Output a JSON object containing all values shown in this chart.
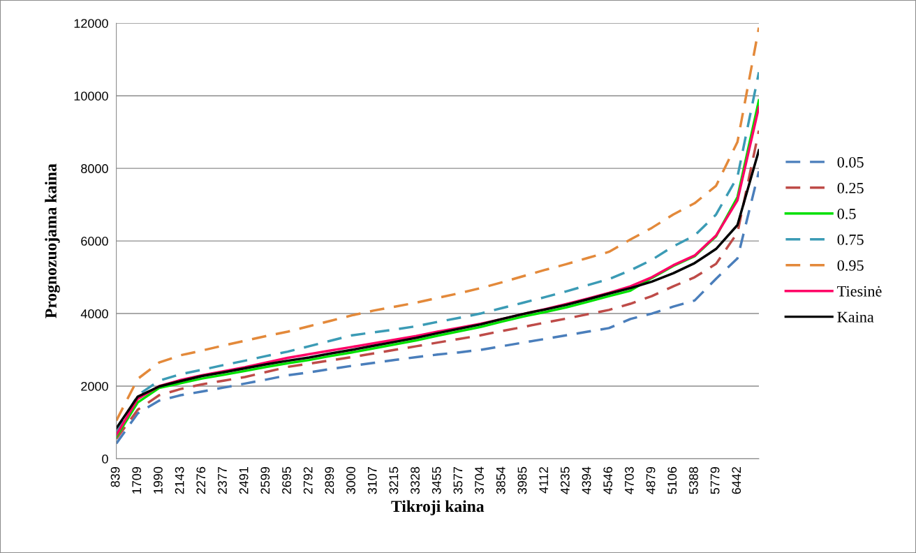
{
  "chart_data": {
    "type": "line",
    "xlabel": "Tikroji kaina",
    "ylabel": "Prognozuojama kaina",
    "categories": [
      "839",
      "1709",
      "1990",
      "2143",
      "2276",
      "2377",
      "2491",
      "2599",
      "2695",
      "2792",
      "2899",
      "3000",
      "3107",
      "3215",
      "3328",
      "3455",
      "3577",
      "3704",
      "3854",
      "3985",
      "4112",
      "4235",
      "4394",
      "4546",
      "4703",
      "4879",
      "5106",
      "5388",
      "5779",
      "6442",
      null
    ],
    "ylim": [
      0,
      12000
    ],
    "yticks": [
      0,
      2000,
      4000,
      6000,
      8000,
      10000,
      12000
    ],
    "grid": "y",
    "legend": "right",
    "marker": "none",
    "series": [
      {
        "name": "0.05",
        "color": "#4a7ebb",
        "line_style": "dashed",
        "values": [
          420,
          1250,
          1600,
          1750,
          1850,
          1960,
          2070,
          2180,
          2300,
          2380,
          2470,
          2560,
          2640,
          2720,
          2800,
          2870,
          2930,
          3000,
          3100,
          3200,
          3300,
          3400,
          3500,
          3600,
          3850,
          4000,
          4190,
          4360,
          4960,
          5520,
          7920
        ]
      },
      {
        "name": "0.25",
        "color": "#be4b48",
        "line_style": "dashed",
        "values": [
          550,
          1350,
          1750,
          1920,
          2050,
          2150,
          2250,
          2390,
          2530,
          2620,
          2710,
          2800,
          2900,
          3000,
          3100,
          3200,
          3300,
          3400,
          3520,
          3630,
          3750,
          3860,
          3980,
          4100,
          4270,
          4480,
          4750,
          5000,
          5370,
          6230,
          9040
        ]
      },
      {
        "name": "0.5",
        "color": "#00e000",
        "line_style": "solid",
        "values": [
          600,
          1550,
          1950,
          2080,
          2210,
          2310,
          2420,
          2530,
          2630,
          2720,
          2830,
          2930,
          3040,
          3150,
          3260,
          3390,
          3510,
          3630,
          3780,
          3920,
          4040,
          4170,
          4320,
          4480,
          4630,
          4980,
          5310,
          5580,
          6130,
          7210,
          9880
        ]
      },
      {
        "name": "0.75",
        "color": "#3b9bb5",
        "line_style": "dashed",
        "values": [
          700,
          1750,
          2150,
          2330,
          2450,
          2580,
          2700,
          2830,
          2950,
          3100,
          3250,
          3400,
          3480,
          3560,
          3650,
          3770,
          3880,
          4000,
          4150,
          4300,
          4450,
          4610,
          4780,
          4950,
          5190,
          5480,
          5850,
          6150,
          6730,
          7770,
          10650
        ]
      },
      {
        "name": "0.95",
        "color": "#e3893a",
        "line_style": "dashed",
        "values": [
          1050,
          2200,
          2650,
          2850,
          2980,
          3120,
          3250,
          3380,
          3500,
          3650,
          3800,
          3950,
          4080,
          4190,
          4300,
          4430,
          4560,
          4700,
          4860,
          5030,
          5200,
          5360,
          5530,
          5700,
          6040,
          6360,
          6730,
          7040,
          7520,
          8730,
          11880
        ]
      },
      {
        "name": "Tiesinė",
        "color": "#ff0066",
        "line_style": "solid",
        "values": [
          650,
          1650,
          2000,
          2170,
          2300,
          2410,
          2520,
          2650,
          2780,
          2880,
          2980,
          3080,
          3180,
          3280,
          3380,
          3500,
          3610,
          3720,
          3850,
          3990,
          4120,
          4260,
          4410,
          4570,
          4750,
          5000,
          5330,
          5600,
          6150,
          7120,
          9690
        ]
      },
      {
        "name": "Kaina",
        "color": "#000000",
        "line_style": "solid",
        "values": [
          840,
          1710,
          1990,
          2140,
          2280,
          2380,
          2490,
          2600,
          2700,
          2790,
          2900,
          3000,
          3110,
          3220,
          3330,
          3460,
          3580,
          3700,
          3850,
          3990,
          4110,
          4240,
          4390,
          4550,
          4700,
          4880,
          5110,
          5390,
          5780,
          6440,
          8500
        ]
      }
    ]
  }
}
